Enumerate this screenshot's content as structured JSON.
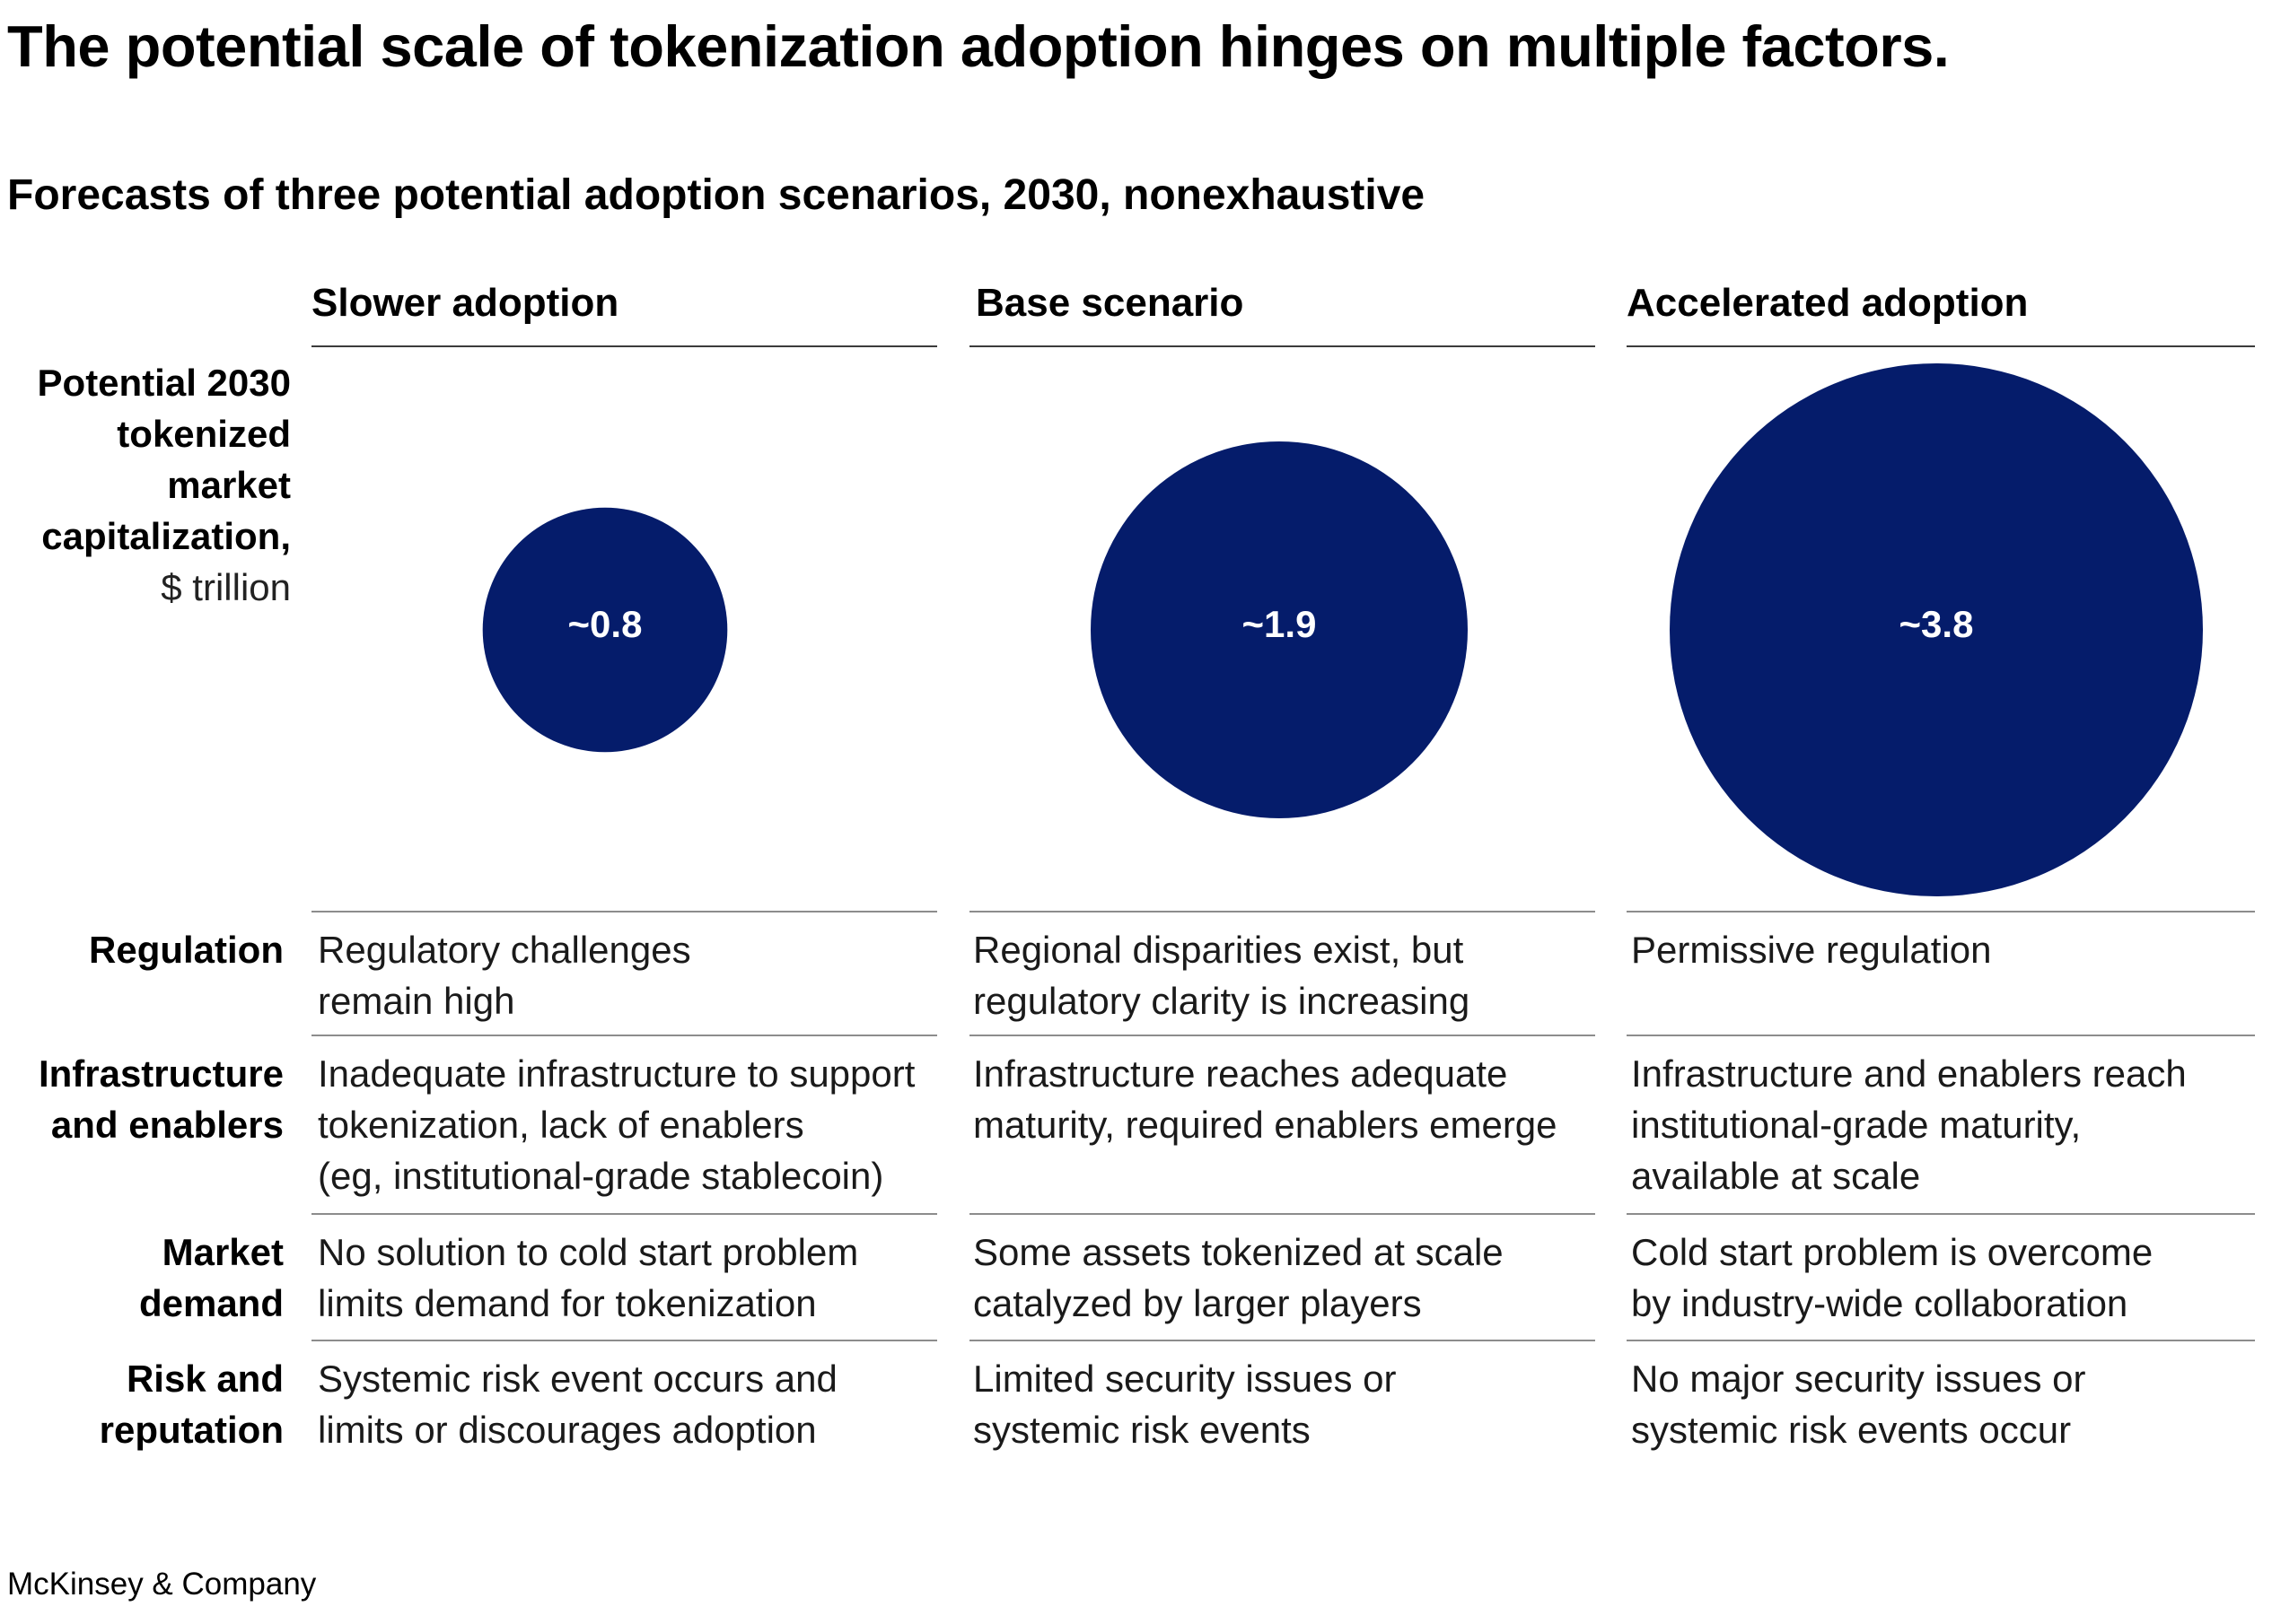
{
  "title": "The potential scale of tokenization adoption hinges on multiple factors.",
  "subtitle": "Forecasts of three potential adoption scenarios, 2030, nonexhaustive",
  "y_label": {
    "bold_lines": [
      "Potential 2030",
      "tokenized",
      "market",
      "capitalization,"
    ],
    "unit": "$ trillion"
  },
  "chart_data": {
    "type": "bubble",
    "title": "The potential scale of tokenization adoption hinges on multiple factors.",
    "subtitle": "Forecasts of three potential adoption scenarios, 2030, nonexhaustive",
    "unit": "$ trillion",
    "categories": [
      "Slower adoption",
      "Base scenario",
      "Accelerated adoption"
    ],
    "values": [
      0.8,
      1.9,
      3.8
    ],
    "value_labels": [
      "~0.8",
      "~1.9",
      "~3.8"
    ],
    "color": "#051c6b"
  },
  "scenarios": [
    {
      "name": "Slower adoption"
    },
    {
      "name": "Base scenario"
    },
    {
      "name": "Accelerated adoption"
    }
  ],
  "factors": [
    {
      "label": "Regulation",
      "cells": [
        "Regulatory challenges\nremain high",
        "Regional disparities exist, but\nregulatory clarity is increasing",
        "Permissive regulation"
      ]
    },
    {
      "label": "Infrastructure\nand enablers",
      "cells": [
        "Inadequate infrastructure to support\ntokenization, lack of enablers\n(eg, institutional-grade stablecoin)",
        "Infrastructure reaches adequate\nmaturity, required enablers emerge",
        "Infrastructure and enablers reach\ninstitutional-grade maturity,\navailable at scale"
      ]
    },
    {
      "label": "Market\ndemand",
      "cells": [
        "No solution to cold start problem\nlimits demand for tokenization",
        "Some assets tokenized at scale\ncatalyzed by larger players",
        "Cold start problem is overcome\nby industry-wide collaboration"
      ]
    },
    {
      "label": "Risk and\nreputation",
      "cells": [
        "Systemic risk event occurs and\nlimits or discourages adoption",
        "Limited security issues or\nsystemic risk events",
        "No major security issues or\nsystemic risk events occur"
      ]
    }
  ],
  "footer": "McKinsey & Company"
}
